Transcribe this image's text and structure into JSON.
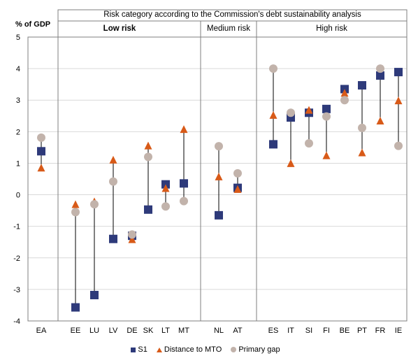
{
  "chart_data": {
    "type": "scatter",
    "title": "Risk category according to the Commission's debt sustainability analysis",
    "ylabel": "% of GDP",
    "ylim": [
      -4,
      5
    ],
    "yticks": [
      -4,
      -3,
      -2,
      -1,
      0,
      1,
      2,
      3,
      4,
      5
    ],
    "categories": [
      "EA",
      "EE",
      "LU",
      "LV",
      "DE",
      "SK",
      "LT",
      "MT",
      "NL",
      "AT",
      "ES",
      "IT",
      "SI",
      "FI",
      "BE",
      "PT",
      "FR",
      "IE"
    ],
    "groups": [
      {
        "label": "Low risk",
        "categories": [
          "EE",
          "LU",
          "LV",
          "DE",
          "SK",
          "LT",
          "MT"
        ]
      },
      {
        "label": "Medium risk",
        "categories": [
          "NL",
          "AT"
        ]
      },
      {
        "label": "High risk",
        "categories": [
          "ES",
          "IT",
          "SI",
          "FI",
          "BE",
          "PT",
          "FR",
          "IE"
        ]
      }
    ],
    "series": [
      {
        "name": "S1",
        "marker": "square",
        "color": "#2e3a7a",
        "values": [
          1.38,
          -3.57,
          -3.18,
          -1.4,
          -1.3,
          -0.47,
          0.33,
          0.36,
          -0.65,
          0.22,
          1.6,
          2.45,
          2.6,
          2.72,
          3.35,
          3.47,
          3.78,
          3.89
        ]
      },
      {
        "name": "Distance to MTO",
        "marker": "triangle",
        "color": "#d85a18",
        "values": [
          0.85,
          -0.31,
          -0.22,
          1.1,
          -1.42,
          1.55,
          0.2,
          2.07,
          0.57,
          0.17,
          2.52,
          0.99,
          2.68,
          1.24,
          3.22,
          1.33,
          2.34,
          2.98
        ]
      },
      {
        "name": "Primary gap",
        "marker": "circle",
        "color": "#c2b3ab",
        "values": [
          1.81,
          -0.55,
          -0.3,
          0.42,
          -1.26,
          1.2,
          -0.37,
          -0.2,
          1.54,
          0.68,
          4.0,
          2.6,
          1.63,
          2.48,
          3.0,
          2.12,
          4.0,
          1.55
        ]
      }
    ],
    "legend_position": "bottom",
    "grid": "horizontal"
  }
}
